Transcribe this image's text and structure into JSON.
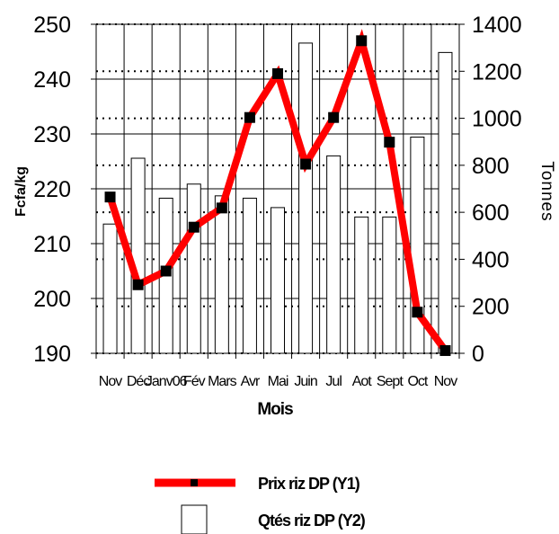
{
  "chart_data": {
    "type": "bar+line",
    "categories": [
      "Nov",
      "Déc",
      "Janv06",
      "Fév",
      "Mars",
      "Avr",
      "Mai",
      "Juin",
      "Jul",
      "Aot",
      "Sept",
      "Oct",
      "Nov"
    ],
    "series": [
      {
        "name": "Prix riz DP (Y1)",
        "type": "line",
        "axis": "left",
        "color": "#ff0000",
        "marker_color": "#000000",
        "values": [
          218.5,
          202.5,
          205,
          213,
          216.5,
          233,
          241,
          224.5,
          233,
          247,
          228.5,
          197.5,
          190.5
        ]
      },
      {
        "name": "Qtés riz DP (Y2)",
        "type": "bar",
        "axis": "right",
        "fill": "#ffffff",
        "stroke": "#000000",
        "values": [
          550,
          830,
          660,
          720,
          670,
          660,
          620,
          1320,
          840,
          580,
          580,
          920,
          1280
        ]
      }
    ],
    "xlabel": "Mois",
    "ylabel_left": "Fcfa/kg",
    "ylabel_right": "Tonnes",
    "ylim_left": [
      190,
      250
    ],
    "yticks_left": [
      190,
      200,
      210,
      220,
      230,
      240,
      250
    ],
    "ylim_right": [
      0,
      1400
    ],
    "yticks_right": [
      0,
      200,
      400,
      600,
      800,
      1000,
      1200,
      1400
    ],
    "grid": "solid lines at left-axis ticks, dotted lines at right-axis ticks, vertical lines between months",
    "legend_position": "bottom-center",
    "legend": [
      {
        "label": "Prix riz DP (Y1)",
        "symbol": "line"
      },
      {
        "label": "Qtés riz DP (Y2)",
        "symbol": "bar"
      }
    ]
  }
}
